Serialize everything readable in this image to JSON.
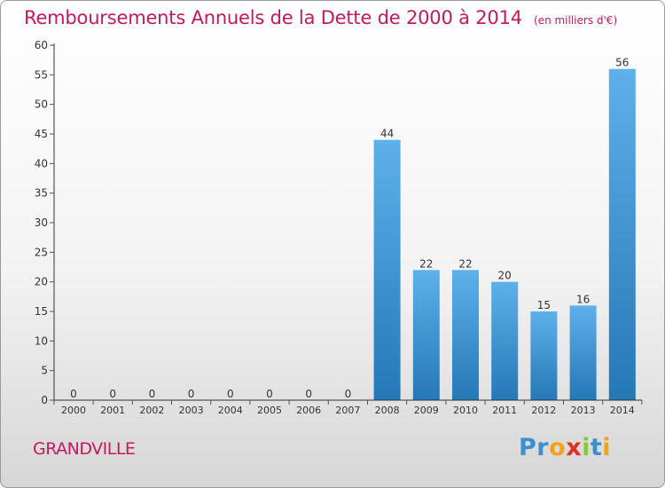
{
  "header": {
    "title": "Remboursements Annuels de la Dette de 2000 à 2014",
    "unit": "(en milliers d'€)"
  },
  "footer": {
    "location": "GRANDVILLE",
    "brand": {
      "letters": [
        "P",
        "r",
        "o",
        "x",
        "i",
        "t",
        "i"
      ],
      "colors": [
        "#3a8fcf",
        "#3a8fcf",
        "#f2a31b",
        "#e2301f",
        "#8cc63f",
        "#3a8fcf",
        "#f2a31b"
      ]
    }
  },
  "colors": {
    "bar_light": "#5eb0ea",
    "bar_dark": "#2578b6",
    "axis": "#333333",
    "grid_tick": "#555555",
    "title": "#c8185c"
  },
  "chart_data": {
    "type": "bar",
    "categories": [
      "2000",
      "2001",
      "2002",
      "2003",
      "2004",
      "2005",
      "2006",
      "2007",
      "2008",
      "2009",
      "2010",
      "2011",
      "2012",
      "2013",
      "2014"
    ],
    "values": [
      0,
      0,
      0,
      0,
      0,
      0,
      0,
      0,
      44,
      22,
      22,
      20,
      15,
      16,
      56
    ],
    "data_labels": [
      "0",
      "0",
      "0",
      "0",
      "0",
      "0",
      "0",
      "0",
      "44",
      "22",
      "22",
      "20",
      "15",
      "16",
      "56"
    ],
    "y_ticks": [
      0,
      5,
      10,
      15,
      20,
      25,
      30,
      35,
      40,
      45,
      50,
      55,
      60
    ],
    "ylim": [
      0,
      60
    ],
    "grid": false,
    "legend": "none"
  }
}
